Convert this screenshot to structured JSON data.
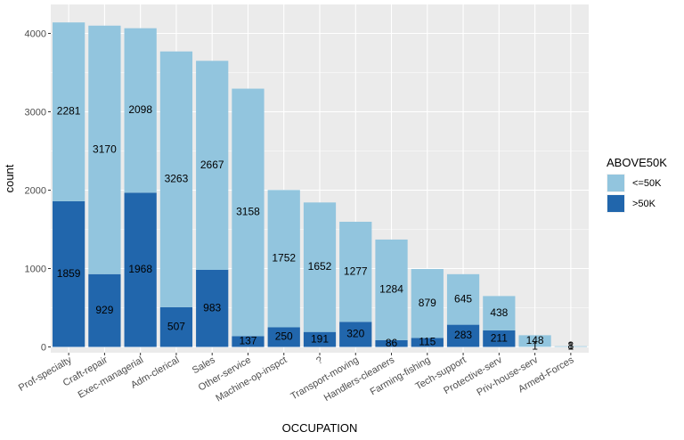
{
  "chart_data": {
    "type": "bar",
    "stacked": true,
    "xlabel": "OCCUPATION",
    "ylabel": "count",
    "ylim": [
      0,
      4250
    ],
    "yticks": [
      0,
      1000,
      2000,
      3000,
      4000
    ],
    "grid": true,
    "categories": [
      "Prof-specialty",
      "Craft-repair",
      "Exec-managerial",
      "Adm-clerical",
      "Sales",
      "Other-service",
      "Machine-op-inspct",
      "?",
      "Transport-moving",
      "Handlers-cleaners",
      "Farming-fishing",
      "Tech-support",
      "Protective-serv",
      "Priv-house-serv",
      "Armed-Forces"
    ],
    "series": [
      {
        "name": ">50K",
        "color": "#2166ac",
        "values": [
          1859,
          929,
          1968,
          507,
          983,
          137,
          250,
          191,
          320,
          86,
          115,
          283,
          211,
          1,
          1
        ]
      },
      {
        "name": "<=50K",
        "color": "#92c5de",
        "values": [
          2281,
          3170,
          2098,
          3263,
          2667,
          3158,
          1752,
          1652,
          1277,
          1284,
          879,
          645,
          438,
          148,
          8
        ]
      }
    ],
    "legend": {
      "title": "ABOVE50K",
      "position": "right",
      "entries": [
        "<=50K",
        ">50K"
      ]
    }
  }
}
